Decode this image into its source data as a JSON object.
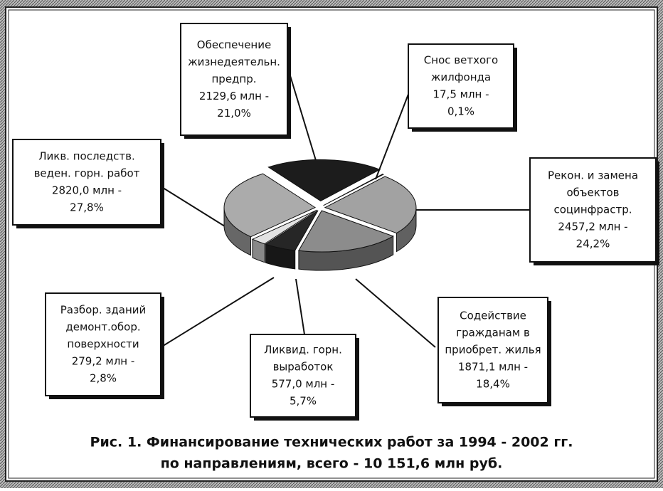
{
  "chart_data": {
    "type": "pie",
    "title": "Рис. 1. Финансирование технических работ за 1994 - 2002 гг.",
    "subtitle": "по направлениям, всего - 10 151,6 млн руб.",
    "categories": [
      [
        "Обеспечение",
        "жизнедеятельн.",
        "предпр."
      ],
      [
        "Снос ветхого",
        "жилфонда"
      ],
      [
        "Рекон. и замена",
        "объектов",
        "социнфрастр."
      ],
      [
        "Содействие",
        "гражданам в",
        "приобрет. жилья"
      ],
      [
        "Ликвид. горн.",
        "выработок"
      ],
      [
        "Разбор. зданий",
        "демонт.обор.",
        "поверхности"
      ],
      [
        "Ликв. последств.",
        "веден. горн. работ"
      ]
    ],
    "values": [
      2129.6,
      17.5,
      2457.2,
      1871.1,
      577.0,
      279.2,
      2820.0
    ],
    "value_labels": [
      [
        "2129,6 млн -",
        "21,0%"
      ],
      [
        "17,5 млн -",
        "0,1%"
      ],
      [
        "2457,2 млн -",
        "24,2%"
      ],
      [
        "1871,1 млн -",
        "18,4%"
      ],
      [
        "577,0 млн -",
        "5,7%"
      ],
      [
        "279,2 млн -",
        "2,8%"
      ],
      [
        "2820,0 млн -",
        "27,8%"
      ]
    ],
    "colors": [
      "#1c1c1c",
      "#5a5a5a",
      "#a2a2a2",
      "#8c8c8c",
      "#262626",
      "#e2e2e2",
      "#ababab"
    ]
  }
}
